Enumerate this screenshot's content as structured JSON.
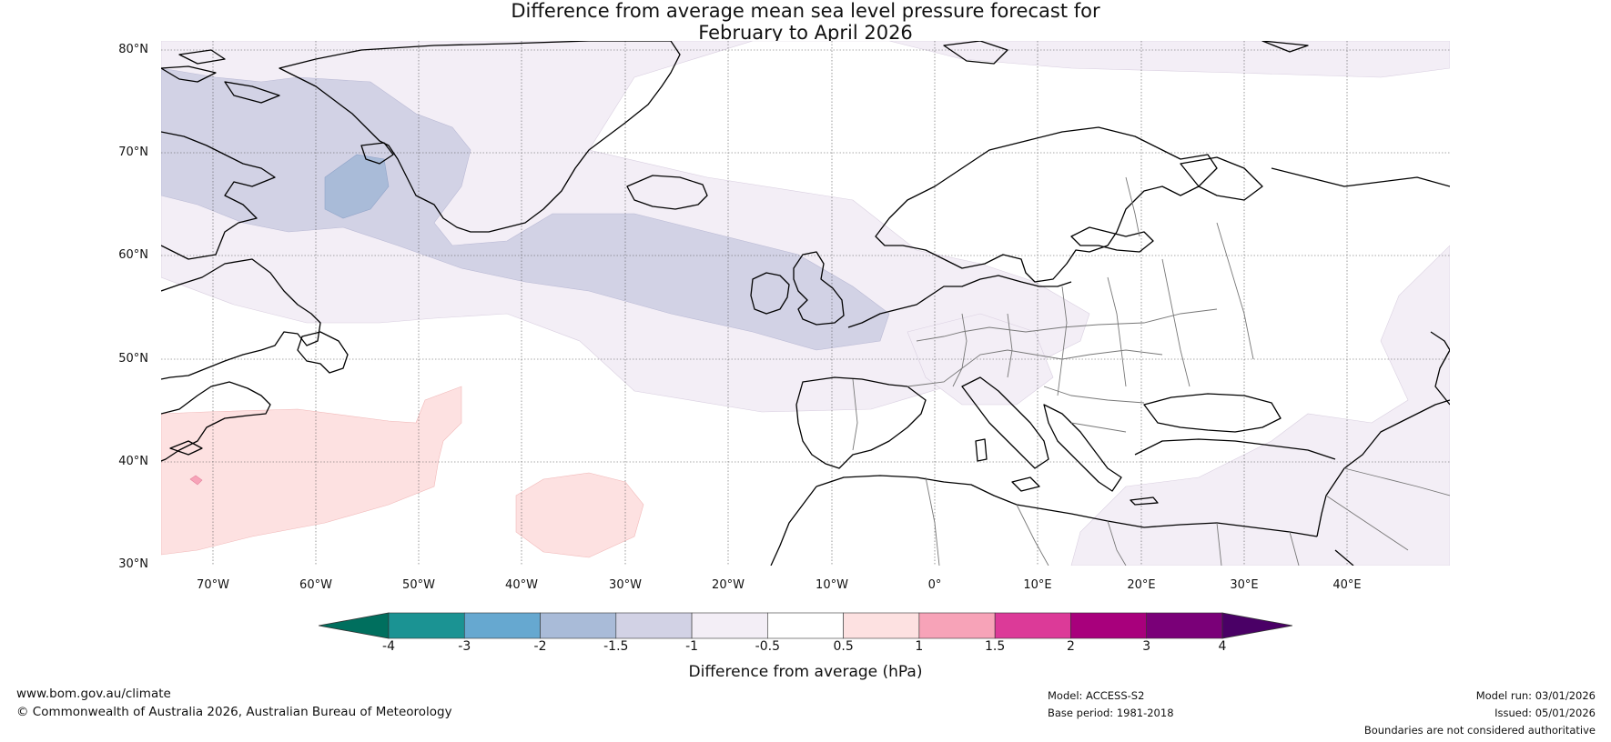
{
  "title": {
    "line1": "Difference from average mean sea level pressure forecast for",
    "line2": "February to April 2026"
  },
  "map": {
    "lat_ticks": [
      "80°N",
      "70°N",
      "60°N",
      "50°N",
      "40°N",
      "30°N"
    ],
    "lon_ticks": [
      "70°W",
      "60°W",
      "50°W",
      "40°W",
      "30°W",
      "20°W",
      "10°W",
      "0°",
      "10°E",
      "20°E",
      "30°E",
      "40°E"
    ],
    "lat_range": [
      30,
      80
    ],
    "lon_range": [
      -75,
      50
    ]
  },
  "colorbar": {
    "ticks": [
      "-4",
      "-3",
      "-2",
      "-1.5",
      "-1",
      "-0.5",
      "0.5",
      "1",
      "1.5",
      "2",
      "3",
      "4"
    ],
    "colors": [
      "#1b9393",
      "#66a8d0",
      "#a9bbd8",
      "#d2d2e5",
      "#f3eef6",
      "#ffffff",
      "#fde1e1",
      "#f7a3b8",
      "#dc3a98",
      "#a8007c",
      "#7a0078"
    ],
    "under_color": "#006f5e",
    "over_color": "#4a0066",
    "label": "Difference from average (hPa)"
  },
  "footer": {
    "website": "www.bom.gov.au/climate",
    "copyright": "© Commonwealth of Australia 2026, Australian Bureau of Meteorology",
    "model": "Model: ACCESS-S2",
    "base_period": "Base period: 1981-2018",
    "model_run": "Model run: 03/01/2026",
    "issued": "Issued: 05/01/2026",
    "disclaimer": "Boundaries are not considered authoritative"
  }
}
